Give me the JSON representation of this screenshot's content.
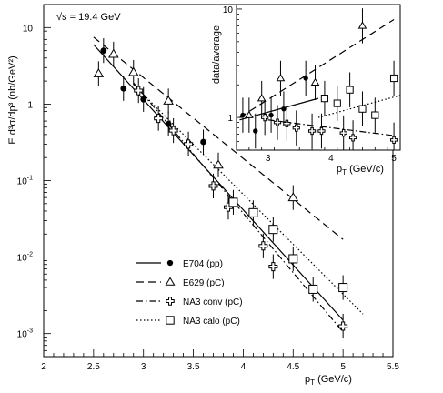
{
  "chart_data": [
    {
      "type": "scatter",
      "annotation": "√s = 19.4 GeV",
      "xlabel_main": "p",
      "xlabel_sub": "T",
      "xlabel_unit": " (GeV/c)",
      "ylabel": "E d³σ/dp³ (nb/GeV²)",
      "xlim": [
        2,
        5.5
      ],
      "ylim": [
        0.0005,
        20
      ],
      "yscale": "log",
      "xticks": [
        "2",
        "2.5",
        "3",
        "3.5",
        "4",
        "4.5",
        "5",
        "5.5"
      ],
      "yticks": [
        {
          "base": "10",
          "exp": ""
        },
        {
          "base": "1",
          "exp": ""
        },
        {
          "base": "10",
          "exp": "-1"
        },
        {
          "base": "10",
          "exp": "-2"
        },
        {
          "base": "10",
          "exp": "-3"
        }
      ],
      "legend_position": "bottom-center",
      "series": [
        {
          "name": "E704 (pp)",
          "marker": "filled-circle",
          "line": "solid",
          "points": [
            [
              2.6,
              5.0
            ],
            [
              2.8,
              1.6
            ],
            [
              3.0,
              1.15
            ],
            [
              3.25,
              0.55
            ],
            [
              3.6,
              0.32
            ]
          ],
          "fit": [
            [
              2.5,
              6.0
            ],
            [
              5.0,
              0.0015
            ]
          ]
        },
        {
          "name": "E629 (pC)",
          "marker": "open-triangle",
          "line": "dashed",
          "points": [
            [
              2.55,
              2.5
            ],
            [
              2.7,
              4.5
            ],
            [
              2.9,
              2.6
            ],
            [
              3.25,
              1.1
            ],
            [
              3.75,
              0.16
            ],
            [
              4.5,
              0.06
            ]
          ],
          "fit": [
            [
              2.5,
              7.5
            ],
            [
              5.0,
              0.017
            ]
          ]
        },
        {
          "name": "NA3 conv (pC)",
          "marker": "open-cross",
          "line": "dashdot",
          "points": [
            [
              2.95,
              1.5
            ],
            [
              3.15,
              0.65
            ],
            [
              3.3,
              0.45
            ],
            [
              3.45,
              0.3
            ],
            [
              3.7,
              0.085
            ],
            [
              3.85,
              0.045
            ],
            [
              4.2,
              0.014
            ],
            [
              4.3,
              0.0075
            ],
            [
              5.0,
              0.00125
            ]
          ],
          "fit": [
            [
              2.9,
              1.9
            ],
            [
              5.0,
              0.00105
            ]
          ]
        },
        {
          "name": "NA3 calo (pC)",
          "marker": "open-square",
          "line": "dotted",
          "points": [
            [
              3.9,
              0.052
            ],
            [
              4.1,
              0.038
            ],
            [
              4.3,
              0.023
            ],
            [
              4.5,
              0.0095
            ],
            [
              4.7,
              0.0038
            ],
            [
              5.0,
              0.004
            ]
          ],
          "fit": [
            [
              2.9,
              1.8
            ],
            [
              5.2,
              0.0018
            ]
          ]
        }
      ]
    },
    {
      "type": "scatter",
      "inset": true,
      "xlabel_main": "p",
      "xlabel_sub": "T",
      "xlabel_unit": " (GeV/c)",
      "ylabel": "data/average",
      "xlim": [
        2.5,
        5.1
      ],
      "ylim": [
        0.5,
        11
      ],
      "yscale": "log",
      "xticks": [
        "3",
        "4",
        "5"
      ],
      "yticks": [
        "10",
        "1"
      ],
      "series": [
        {
          "name": "E704 (pp)",
          "marker": "filled-circle",
          "line": "solid",
          "points": [
            [
              2.6,
              1.05
            ],
            [
              2.8,
              0.75
            ],
            [
              3.05,
              1.05
            ],
            [
              3.25,
              1.2
            ],
            [
              3.6,
              2.3
            ]
          ],
          "fit": [
            [
              2.55,
              0.95
            ],
            [
              3.8,
              1.5
            ]
          ]
        },
        {
          "name": "E629 (pC)",
          "marker": "open-triangle",
          "line": "dashed",
          "points": [
            [
              2.7,
              1.05
            ],
            [
              2.9,
              1.5
            ],
            [
              3.2,
              2.3
            ],
            [
              3.75,
              2.1
            ],
            [
              4.5,
              7.0
            ]
          ],
          "fit": [
            [
              2.55,
              1.0
            ],
            [
              5.0,
              8.0
            ]
          ]
        },
        {
          "name": "NA3 conv (pC)",
          "marker": "open-cross",
          "line": "dashdot",
          "points": [
            [
              2.95,
              1.0
            ],
            [
              3.15,
              0.9
            ],
            [
              3.3,
              0.88
            ],
            [
              3.45,
              0.8
            ],
            [
              3.7,
              0.75
            ],
            [
              3.85,
              0.75
            ],
            [
              4.2,
              0.72
            ],
            [
              4.35,
              0.65
            ],
            [
              5.0,
              0.62
            ]
          ],
          "fit": [
            [
              3.0,
              0.95
            ],
            [
              5.0,
              0.68
            ]
          ]
        },
        {
          "name": "NA3 calo (pC)",
          "marker": "open-square",
          "line": "dotted",
          "points": [
            [
              3.9,
              1.5
            ],
            [
              4.1,
              1.35
            ],
            [
              4.3,
              1.8
            ],
            [
              4.5,
              1.2
            ],
            [
              4.7,
              1.05
            ],
            [
              5.0,
              2.3
            ]
          ],
          "fit": [
            [
              3.8,
              1.0
            ],
            [
              5.1,
              1.6
            ]
          ]
        }
      ]
    }
  ]
}
